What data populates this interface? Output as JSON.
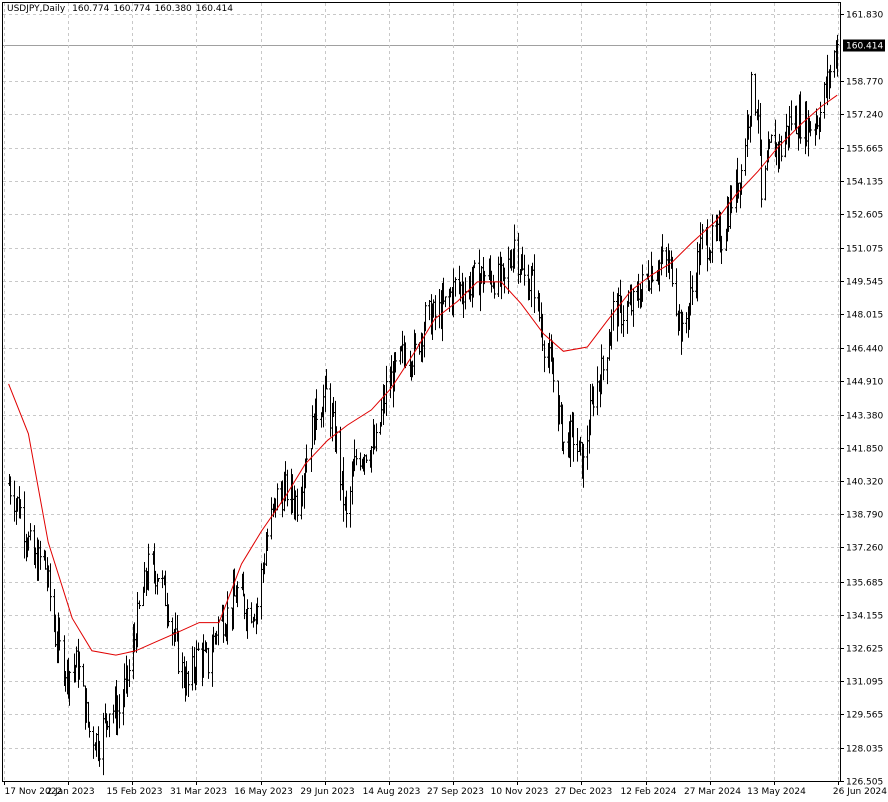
{
  "header": {
    "symbol": "USDJPY,Daily",
    "open": "160.774",
    "high": "160.774",
    "low": "160.380",
    "close": "160.414"
  },
  "colors": {
    "background": "#ffffff",
    "grid": "#c8c8c8",
    "bars": "#000000",
    "ma_line": "#e00000",
    "price_tag_bg": "#000000",
    "price_tag_text": "#ffffff"
  },
  "chart_data": {
    "type": "line",
    "title": "",
    "instrument": "USDJPY",
    "timeframe": "Daily",
    "y_ticks": [
      161.83,
      160.414,
      158.77,
      157.24,
      155.665,
      154.135,
      152.605,
      151.075,
      149.545,
      148.015,
      146.44,
      144.91,
      143.38,
      141.85,
      140.32,
      138.79,
      137.26,
      135.685,
      134.155,
      132.625,
      131.095,
      129.565,
      128.035,
      126.505
    ],
    "y_tick_labels": [
      "161.830",
      "160.414",
      "158.770",
      "157.240",
      "155.665",
      "154.135",
      "152.605",
      "151.075",
      "149.545",
      "148.015",
      "146.440",
      "144.910",
      "143.380",
      "141.850",
      "140.320",
      "138.790",
      "137.260",
      "135.685",
      "134.155",
      "132.625",
      "131.095",
      "129.565",
      "128.035",
      "126.505"
    ],
    "ylim": [
      126.5,
      162.35
    ],
    "x_tick_labels": [
      "17 Nov 2022",
      "2 Jan 2023",
      "15 Feb 2023",
      "31 Mar 2023",
      "16 May 2023",
      "29 Jun 2023",
      "14 Aug 2023",
      "27 Sep 2023",
      "10 Nov 2023",
      "27 Dec 2023",
      "12 Feb 2024",
      "27 Mar 2024",
      "13 May 2024",
      "26 Jun 2024"
    ],
    "current_price": 160.414,
    "grid": true,
    "series": [
      {
        "kind": "ohlc",
        "close_path": {
          "x": [
            "2022-11-17",
            "2022-11-25",
            "2022-12-05",
            "2022-12-12",
            "2022-12-20",
            "2022-12-28",
            "2023-01-05",
            "2023-01-13",
            "2023-01-20",
            "2023-01-27",
            "2023-02-03",
            "2023-02-10",
            "2023-02-17",
            "2023-02-24",
            "2023-03-03",
            "2023-03-10",
            "2023-03-17",
            "2023-03-24",
            "2023-03-31",
            "2023-04-07",
            "2023-04-14",
            "2023-04-21",
            "2023-04-28",
            "2023-05-05",
            "2023-05-12",
            "2023-05-19",
            "2023-05-26",
            "2023-06-02",
            "2023-06-09",
            "2023-06-16",
            "2023-06-23",
            "2023-06-30",
            "2023-07-07",
            "2023-07-14",
            "2023-07-21",
            "2023-07-28",
            "2023-08-04",
            "2023-08-11",
            "2023-08-18",
            "2023-08-25",
            "2023-09-01",
            "2023-09-08",
            "2023-09-15",
            "2023-09-22",
            "2023-09-29",
            "2023-10-06",
            "2023-10-13",
            "2023-10-20",
            "2023-10-27",
            "2023-11-03",
            "2023-11-10",
            "2023-11-17",
            "2023-11-24",
            "2023-12-01",
            "2023-12-08",
            "2023-12-15",
            "2023-12-22",
            "2023-12-29",
            "2024-01-05",
            "2024-01-12",
            "2024-01-19",
            "2024-01-26",
            "2024-02-02",
            "2024-02-09",
            "2024-02-16",
            "2024-02-23",
            "2024-03-01",
            "2024-03-08",
            "2024-03-15",
            "2024-03-22",
            "2024-03-29",
            "2024-04-05",
            "2024-04-12",
            "2024-04-19",
            "2024-04-26",
            "2024-05-01",
            "2024-05-03",
            "2024-05-10",
            "2024-05-17",
            "2024-05-24",
            "2024-05-31",
            "2024-06-07",
            "2024-06-14",
            "2024-06-21",
            "2024-06-26"
          ],
          "close": [
            140.2,
            139.0,
            136.5,
            136.8,
            133.2,
            131.5,
            131.9,
            128.8,
            128.3,
            129.9,
            129.7,
            131.5,
            134.3,
            136.3,
            136.1,
            134.6,
            132.2,
            130.8,
            132.4,
            131.9,
            133.8,
            134.2,
            135.2,
            134.4,
            134.6,
            137.8,
            139.6,
            139.9,
            139.4,
            141.5,
            143.6,
            144.3,
            142.1,
            138.5,
            141.4,
            141.8,
            141.9,
            144.5,
            145.4,
            146.3,
            146.2,
            147.8,
            147.9,
            148.4,
            149.3,
            149.2,
            149.6,
            149.8,
            149.7,
            149.4,
            151.4,
            149.6,
            149.4,
            146.8,
            145.0,
            142.1,
            142.4,
            141.0,
            144.3,
            145.5,
            148.1,
            148.1,
            148.4,
            149.3,
            150.2,
            150.4,
            150.1,
            146.9,
            149.1,
            151.4,
            151.3,
            151.6,
            153.3,
            154.6,
            158.3,
            157.5,
            153.0,
            155.8,
            155.6,
            157.0,
            156.9,
            156.7,
            157.3,
            159.2,
            160.4
          ]
        }
      },
      {
        "kind": "moving_average",
        "x": [
          "2022-11-17",
          "2022-12-01",
          "2022-12-15",
          "2023-01-01",
          "2023-01-15",
          "2023-02-01",
          "2023-02-15",
          "2023-03-01",
          "2023-03-15",
          "2023-04-01",
          "2023-04-15",
          "2023-05-01",
          "2023-05-15",
          "2023-06-01",
          "2023-06-15",
          "2023-07-01",
          "2023-07-15",
          "2023-08-01",
          "2023-08-15",
          "2023-09-01",
          "2023-09-15",
          "2023-10-01",
          "2023-10-15",
          "2023-11-01",
          "2023-11-15",
          "2023-12-01",
          "2023-12-15",
          "2024-01-01",
          "2024-01-15",
          "2024-02-01",
          "2024-02-15",
          "2024-03-01",
          "2024-03-15",
          "2024-04-01",
          "2024-04-15",
          "2024-05-01",
          "2024-05-15",
          "2024-06-01",
          "2024-06-15",
          "2024-06-26"
        ],
        "y": [
          144.8,
          142.5,
          137.5,
          134.0,
          132.5,
          132.3,
          132.5,
          132.9,
          133.3,
          133.8,
          133.8,
          136.5,
          138.0,
          139.6,
          141.1,
          142.2,
          142.9,
          143.6,
          144.6,
          146.3,
          147.8,
          148.6,
          149.5,
          149.5,
          148.5,
          147.1,
          146.3,
          146.5,
          147.7,
          149.1,
          149.8,
          150.4,
          151.3,
          152.3,
          153.5,
          154.6,
          155.7,
          156.8,
          157.6,
          158.1
        ]
      }
    ]
  }
}
